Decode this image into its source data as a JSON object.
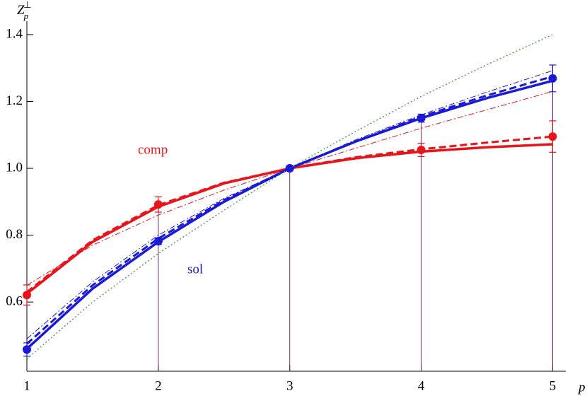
{
  "chart_data": {
    "type": "line",
    "xlabel": "p",
    "ylabel": {
      "base": "Z",
      "sub": "p",
      "sup": "⊥"
    },
    "annotations": [
      "comp",
      "sol"
    ],
    "xlim": [
      1,
      5.1
    ],
    "ylim": [
      0.393,
      1.44
    ],
    "xticks": [
      1,
      2,
      3,
      4,
      5
    ],
    "yticks": [
      0.6,
      0.8,
      {
        "value": 1,
        "label": "1.0"
      },
      1.2,
      1.4
    ],
    "points": [
      {
        "color": "#e8141c",
        "x": [
          1,
          2,
          3,
          4,
          5
        ],
        "values": [
          0.621,
          0.892,
          1.0,
          1.055,
          1.095
        ],
        "errors": [
          0.03,
          0.023,
          0.0,
          0.02,
          0.047
        ]
      },
      {
        "color": "#1a1ad6",
        "x": [
          1,
          2,
          3,
          4,
          5
        ],
        "values": [
          0.458,
          0.782,
          1.0,
          1.15,
          1.269
        ],
        "errors": [
          0.02,
          0.01,
          0.0,
          0.012,
          0.04
        ]
      }
    ],
    "series": [
      {
        "color": "#e8141c",
        "style": "solid",
        "width": 3.5,
        "x": [
          1,
          1.5,
          2,
          2.5,
          3,
          3.5,
          4,
          4.5,
          5
        ],
        "values": [
          0.625,
          0.78,
          0.885,
          0.955,
          1.0,
          1.03,
          1.05,
          1.063,
          1.072
        ]
      },
      {
        "color": "#e8141c",
        "style": "dashed",
        "width": 3,
        "x": [
          1,
          1.5,
          2,
          2.5,
          3,
          3.5,
          4,
          4.5,
          5
        ],
        "values": [
          0.63,
          0.785,
          0.89,
          0.957,
          1.0,
          1.033,
          1.057,
          1.077,
          1.095
        ]
      },
      {
        "color": "#e8141c",
        "style": "dashdot",
        "width": 1,
        "x": [
          1,
          1.5,
          2,
          2.5,
          3,
          3.5,
          4,
          4.5,
          5
        ],
        "values": [
          0.65,
          0.77,
          0.86,
          0.935,
          1.0,
          1.06,
          1.12,
          1.175,
          1.23
        ]
      },
      {
        "color": "#1a1ad6",
        "style": "solid",
        "width": 3.5,
        "x": [
          1,
          1.5,
          2,
          2.5,
          3,
          3.5,
          4,
          4.5,
          5
        ],
        "values": [
          0.46,
          0.64,
          0.78,
          0.9,
          1.0,
          1.08,
          1.15,
          1.21,
          1.262
        ]
      },
      {
        "color": "#1a1ad6",
        "style": "dashed",
        "width": 3,
        "x": [
          1,
          1.5,
          2,
          2.5,
          3,
          3.5,
          4,
          4.5,
          5
        ],
        "values": [
          0.475,
          0.65,
          0.79,
          0.905,
          1.0,
          1.08,
          1.155,
          1.218,
          1.275
        ]
      },
      {
        "color": "#1a1ad6",
        "style": "dashdot",
        "width": 1,
        "x": [
          1,
          1.5,
          2,
          2.5,
          3,
          3.5,
          4,
          4.5,
          5
        ],
        "values": [
          0.49,
          0.66,
          0.8,
          0.91,
          1.0,
          1.085,
          1.16,
          1.228,
          1.292
        ]
      },
      {
        "color": "#3a9a3a",
        "style": "dotted",
        "width": 1.3,
        "x": [
          1,
          1.5,
          2,
          2.5,
          3,
          3.5,
          4,
          4.5,
          5
        ],
        "values": [
          0.43,
          0.6,
          0.745,
          0.875,
          1.0,
          1.11,
          1.215,
          1.31,
          1.4
        ]
      }
    ]
  }
}
